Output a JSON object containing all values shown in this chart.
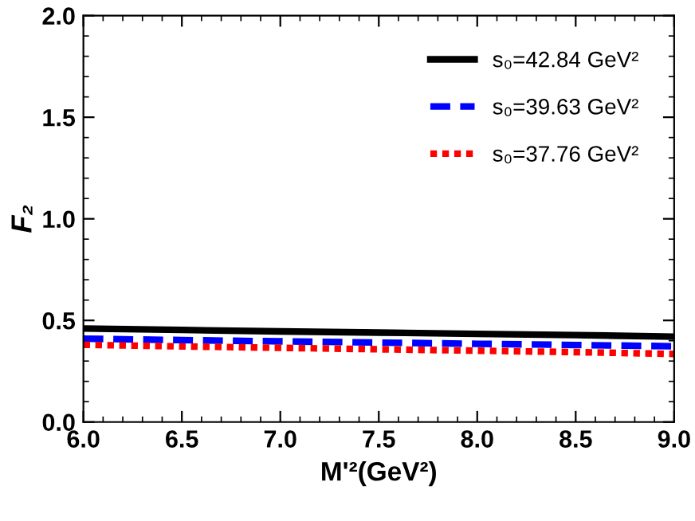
{
  "chart_data": {
    "type": "line",
    "xlabel": "M'²(GeV²)",
    "ylabel": "F₂",
    "xlim": [
      6.0,
      9.0
    ],
    "ylim": [
      0.0,
      2.0
    ],
    "xticks": [
      {
        "value": 6.0,
        "label": "6.0"
      },
      {
        "value": 6.5,
        "label": "6.5"
      },
      {
        "value": 7.0,
        "label": "7.0"
      },
      {
        "value": 7.5,
        "label": "7.5"
      },
      {
        "value": 8.0,
        "label": "8.0"
      },
      {
        "value": 8.5,
        "label": "8.5"
      },
      {
        "value": 9.0,
        "label": "9.0"
      }
    ],
    "yticks": [
      {
        "value": 0.0,
        "label": "0.0"
      },
      {
        "value": 0.5,
        "label": "0.5"
      },
      {
        "value": 1.0,
        "label": "1.0"
      },
      {
        "value": 1.5,
        "label": "1.5"
      },
      {
        "value": 2.0,
        "label": "2.0"
      }
    ],
    "legend": "top right",
    "grid": false,
    "x": [
      6.0,
      6.5,
      7.0,
      7.5,
      8.0,
      8.5,
      9.0
    ],
    "series": [
      {
        "name": "s₀=42.84 GeV²",
        "color": "#000000",
        "line_style": "solid",
        "values": [
          0.46,
          0.453,
          0.446,
          0.44,
          0.434,
          0.428,
          0.42
        ]
      },
      {
        "name": "s₀=39.63 GeV²",
        "color": "#0000ff",
        "line_style": "dashed",
        "values": [
          0.41,
          0.403,
          0.397,
          0.391,
          0.385,
          0.379,
          0.373
        ]
      },
      {
        "name": "s₀=37.76 GeV²",
        "color": "#ff0000",
        "line_style": "dotted",
        "values": [
          0.38,
          0.372,
          0.365,
          0.358,
          0.351,
          0.344,
          0.335
        ]
      }
    ]
  }
}
